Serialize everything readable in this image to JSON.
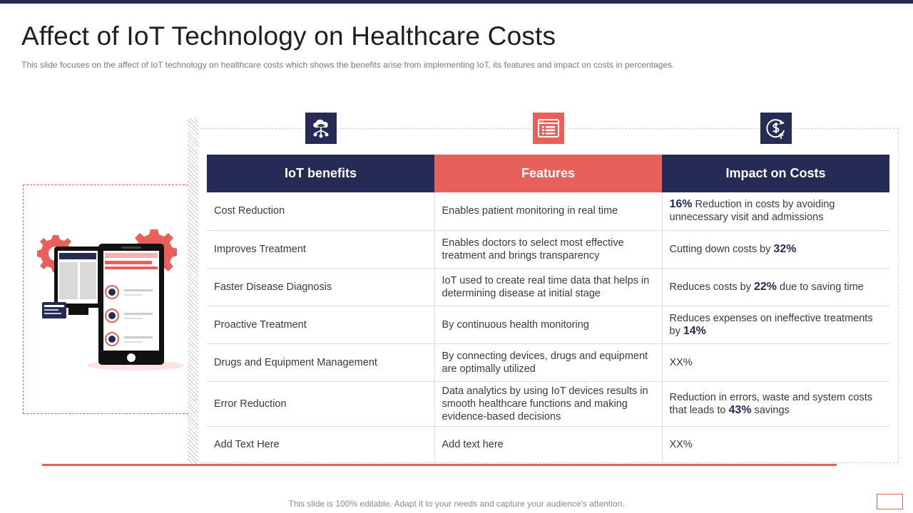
{
  "slide": {
    "title": "Affect of IoT Technology on Healthcare Costs",
    "subtitle": "This slide focuses on the affect of IoT technology on healthcare costs which shows the benefits arise from implementing IoT, its features and impact on costs in percentages.",
    "footer": "This slide is 100% editable. Adapt it to your needs and capture your audience's attention."
  },
  "colors": {
    "navy": "#262b55",
    "accent": "#e8605a"
  },
  "icons": [
    "cloud-network-icon",
    "list-window-icon",
    "dollar-cycle-icon"
  ],
  "table": {
    "headers": [
      "IoT benefits",
      "Features",
      "Impact on Costs"
    ],
    "rows": [
      {
        "benefit": "Cost Reduction",
        "feature": "Enables patient monitoring in real time",
        "impact_pre": "",
        "impact_pct": "16%",
        "impact_post": " Reduction in costs by avoiding unnecessary visit and admissions"
      },
      {
        "benefit": "Improves Treatment",
        "feature": "Enables doctors to select most effective treatment and brings transparency",
        "impact_pre": "Cutting down costs by ",
        "impact_pct": "32%",
        "impact_post": ""
      },
      {
        "benefit": "Faster Disease Diagnosis",
        "feature": "IoT used to create real time data that helps in determining disease at initial stage",
        "impact_pre": "Reduces costs by ",
        "impact_pct": "22%",
        "impact_post": " due to saving time"
      },
      {
        "benefit": "Proactive Treatment",
        "feature": "By continuous health monitoring",
        "impact_pre": "Reduces expenses on ineffective treatments by ",
        "impact_pct": "14%",
        "impact_post": ""
      },
      {
        "benefit": "Drugs and Equipment Management",
        "feature": "By connecting devices, drugs and equipment are optimally utilized",
        "impact_pre": "XX%",
        "impact_pct": "",
        "impact_post": ""
      },
      {
        "benefit": "Error Reduction",
        "feature": "Data analytics by using IoT devices results in smooth healthcare functions and making evidence-based decisions",
        "impact_pre": "Reduction in errors, waste and system costs that leads to ",
        "impact_pct": "43%",
        "impact_post": " savings"
      },
      {
        "benefit": "Add Text Here",
        "feature": "Add text here",
        "impact_pre": "XX%",
        "impact_pct": "",
        "impact_post": ""
      }
    ]
  }
}
